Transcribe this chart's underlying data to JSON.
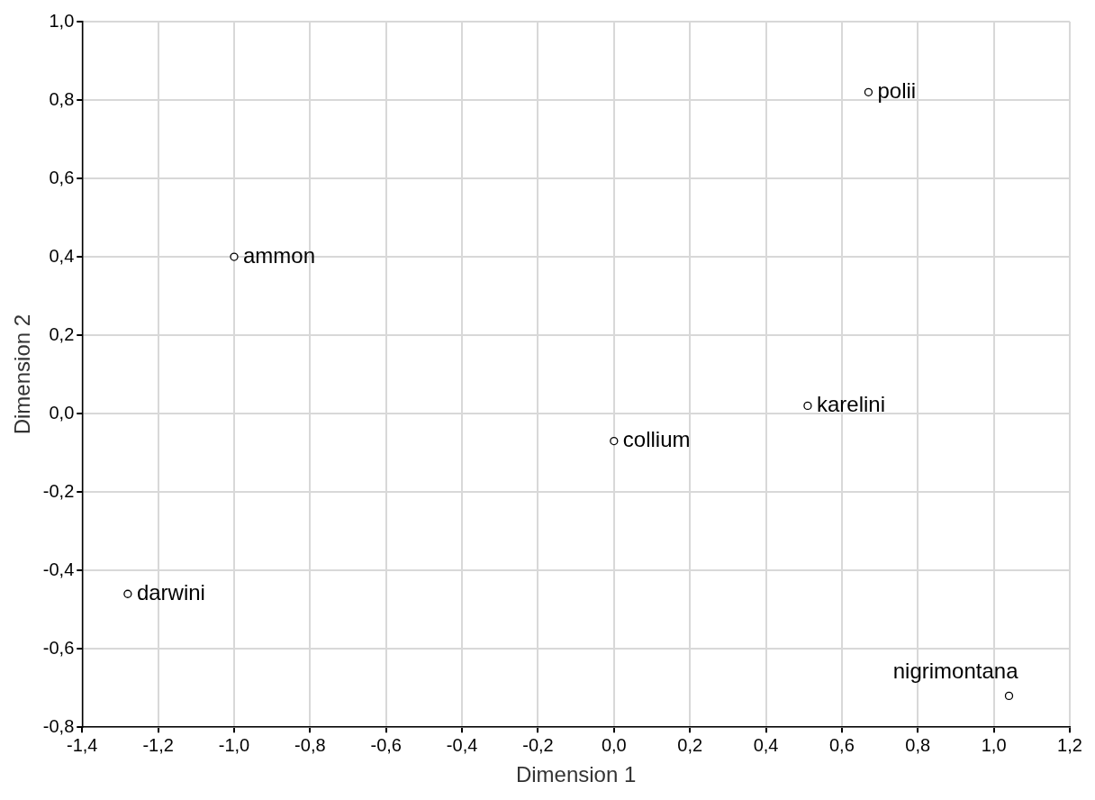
{
  "chart_data": {
    "type": "scatter",
    "xlabel": "Dimension 1",
    "ylabel": "Dimension 2",
    "x": [
      0.67,
      -1.0,
      0.51,
      0.0,
      -1.28,
      1.04
    ],
    "series": [
      {
        "color": "#000000",
        "values": [
          0.82,
          0.4,
          0.02,
          -0.07,
          -0.46,
          -0.72
        ]
      }
    ],
    "annotations": [
      {
        "text": "polii",
        "x": 0.67,
        "y": 0.82
      },
      {
        "text": "ammon",
        "x": -1.0,
        "y": 0.4
      },
      {
        "text": "karelini",
        "x": 0.51,
        "y": 0.02
      },
      {
        "text": "collium",
        "x": 0.0,
        "y": -0.07
      },
      {
        "text": "darwini",
        "x": -1.28,
        "y": -0.46
      },
      {
        "text": "nigrimontana",
        "x": 1.04,
        "y": -0.72
      }
    ],
    "xlim": [
      -1.4,
      1.2
    ],
    "xticks": [
      {
        "value": -1.4,
        "label": "-1,4"
      },
      {
        "value": -1.2,
        "label": "-1,2"
      },
      {
        "value": -1.0,
        "label": "-1,0"
      },
      {
        "value": -0.8,
        "label": "-0,8"
      },
      {
        "value": -0.6,
        "label": "-0,6"
      },
      {
        "value": -0.4,
        "label": "-0,4"
      },
      {
        "value": -0.2,
        "label": "-0,2"
      },
      {
        "value": 0.0,
        "label": "0,0"
      },
      {
        "value": 0.2,
        "label": "0,2"
      },
      {
        "value": 0.4,
        "label": "0,4"
      },
      {
        "value": 0.6,
        "label": "0,6"
      },
      {
        "value": 0.8,
        "label": "0,8"
      },
      {
        "value": 1.0,
        "label": "1,0"
      },
      {
        "value": 1.2,
        "label": "1,2"
      }
    ],
    "ylim": [
      -0.8,
      1.0
    ],
    "yticks": [
      {
        "value": -0.8,
        "label": "-0,8"
      },
      {
        "value": -0.6,
        "label": "-0,6"
      },
      {
        "value": -0.4,
        "label": "-0,4"
      },
      {
        "value": -0.2,
        "label": "-0,2"
      },
      {
        "value": 0.0,
        "label": "0,0"
      },
      {
        "value": 0.2,
        "label": "0,2"
      },
      {
        "value": 0.4,
        "label": "0,4"
      },
      {
        "value": 0.6,
        "label": "0,6"
      },
      {
        "value": 0.8,
        "label": "0,8"
      },
      {
        "value": 1.0,
        "label": "1,0"
      }
    ],
    "grid": true,
    "marker": "circle",
    "legend": false
  }
}
